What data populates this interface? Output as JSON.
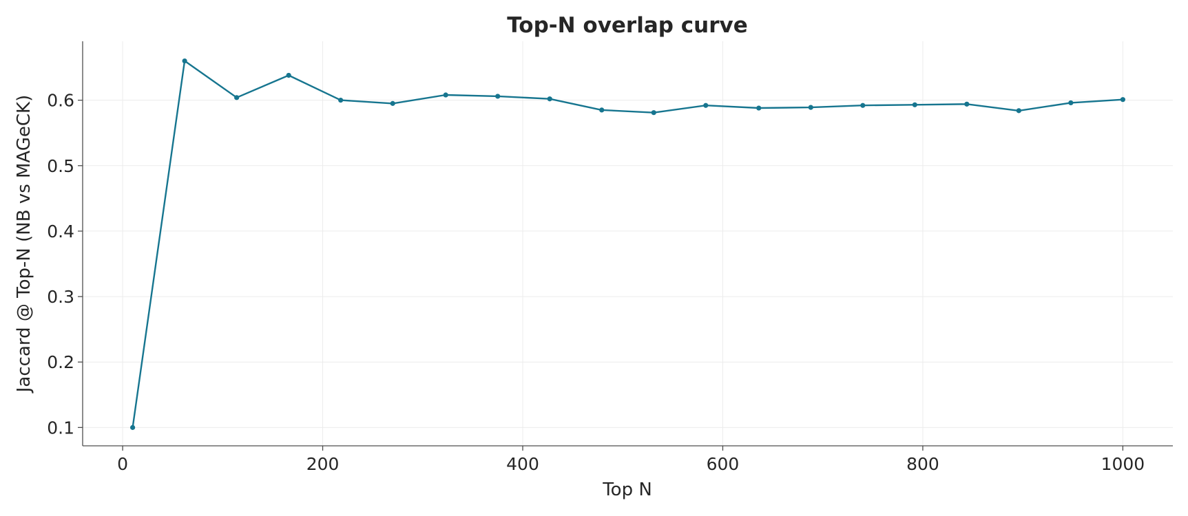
{
  "chart_data": {
    "type": "line",
    "title": "Top-N overlap curve",
    "xlabel": "Top N",
    "ylabel": "Jaccard @ Top-N (NB vs MAGeCK)",
    "xlim": [
      -40,
      1050
    ],
    "ylim": [
      0.072,
      0.69
    ],
    "xticks": [
      0,
      200,
      400,
      600,
      800,
      1000
    ],
    "xtick_labels": [
      "0",
      "200",
      "400",
      "600",
      "800",
      "1000"
    ],
    "yticks": [
      0.1,
      0.2,
      0.3,
      0.4,
      0.5,
      0.6
    ],
    "ytick_labels": [
      "0.1",
      "0.2",
      "0.3",
      "0.4",
      "0.5",
      "0.6"
    ],
    "grid": true,
    "color": "#16758f",
    "series": [
      {
        "x": [
          10,
          62,
          114,
          166,
          218,
          270,
          323,
          375,
          427,
          479,
          531,
          583,
          636,
          688,
          740,
          792,
          844,
          896,
          948,
          1000
        ],
        "y": [
          0.1,
          0.66,
          0.604,
          0.638,
          0.6,
          0.595,
          0.608,
          0.606,
          0.602,
          0.585,
          0.581,
          0.592,
          0.588,
          0.589,
          0.592,
          0.593,
          0.594,
          0.584,
          0.596,
          0.601
        ]
      }
    ]
  }
}
